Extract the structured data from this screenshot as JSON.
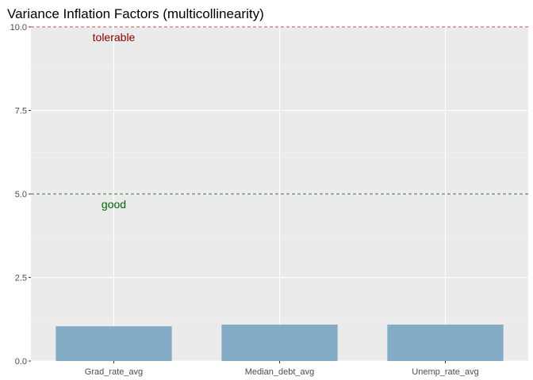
{
  "chart_data": {
    "type": "bar",
    "title": "Variance Inflation Factors (multicollinearity)",
    "xlabel": "",
    "ylabel": "",
    "categories": [
      "Grad_rate_avg",
      "Median_debt_avg",
      "Unemp_rate_avg"
    ],
    "values": [
      1.04,
      1.09,
      1.09
    ],
    "ylim": [
      0,
      10
    ],
    "yticks": [
      "0.0",
      "2.5",
      "5.0",
      "7.5",
      "10.0"
    ],
    "grid": true,
    "legend": "none",
    "bar_color": "#84acc7",
    "panel_color": "#ebebeb",
    "reference_lines": [
      {
        "y": 10,
        "label": "tolerable",
        "color": "#c0504d",
        "label_color": "#8b0000"
      },
      {
        "y": 5,
        "label": "good",
        "color": "#2e7d32",
        "label_color": "#006400"
      }
    ]
  }
}
